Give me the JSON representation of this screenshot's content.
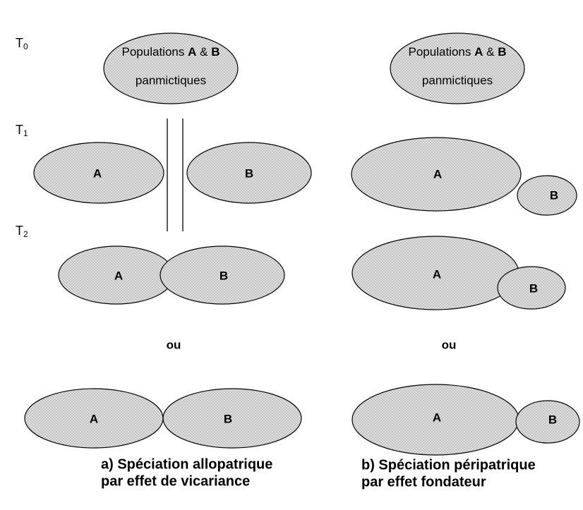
{
  "time_labels": [
    {
      "letter": "T",
      "sub": "0"
    },
    {
      "letter": "T",
      "sub": "1"
    },
    {
      "letter": "T",
      "sub": "2"
    }
  ],
  "columns": [
    {
      "top": {
        "line1": [
          "Populations",
          "A",
          "&",
          "B"
        ],
        "line2": "panmictiques"
      },
      "t1": {
        "a": "A",
        "b": "B"
      },
      "t2": {
        "a": "A",
        "b": "B"
      },
      "or": "ou",
      "alt": {
        "a": "A",
        "b": "B"
      },
      "caption": [
        "a) Spéciation allopatrique",
        "par effet de vicariance"
      ]
    },
    {
      "top": {
        "line1": [
          "Populations",
          "A",
          "&",
          "B"
        ],
        "line2": "panmictiques"
      },
      "t1": {
        "a": "A",
        "b": "B"
      },
      "t2": {
        "a": "A",
        "b": "B"
      },
      "or": "ou",
      "alt": {
        "a": "A",
        "b": "B"
      },
      "caption": [
        "b) Spéciation péripatrique",
        "par effet fondateur"
      ]
    }
  ]
}
